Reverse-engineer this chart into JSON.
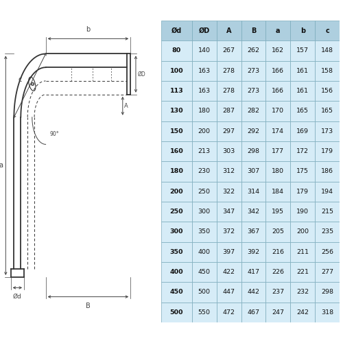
{
  "headers": [
    "Ød",
    "ØD",
    "A",
    "B",
    "a",
    "b",
    "c"
  ],
  "rows": [
    [
      "80",
      "140",
      "267",
      "262",
      "162",
      "157",
      "148"
    ],
    [
      "100",
      "163",
      "278",
      "273",
      "166",
      "161",
      "158"
    ],
    [
      "113",
      "163",
      "278",
      "273",
      "166",
      "161",
      "156"
    ],
    [
      "130",
      "180",
      "287",
      "282",
      "170",
      "165",
      "165"
    ],
    [
      "150",
      "200",
      "297",
      "292",
      "174",
      "169",
      "173"
    ],
    [
      "160",
      "213",
      "303",
      "298",
      "177",
      "172",
      "179"
    ],
    [
      "180",
      "230",
      "312",
      "307",
      "180",
      "175",
      "186"
    ],
    [
      "200",
      "250",
      "322",
      "314",
      "184",
      "179",
      "194"
    ],
    [
      "250",
      "300",
      "347",
      "342",
      "195",
      "190",
      "215"
    ],
    [
      "300",
      "350",
      "372",
      "367",
      "205",
      "200",
      "235"
    ],
    [
      "350",
      "400",
      "397",
      "392",
      "216",
      "211",
      "256"
    ],
    [
      "400",
      "450",
      "422",
      "417",
      "226",
      "221",
      "277"
    ],
    [
      "450",
      "500",
      "447",
      "442",
      "237",
      "232",
      "298"
    ],
    [
      "500",
      "550",
      "472",
      "467",
      "247",
      "242",
      "318"
    ]
  ],
  "header_bg": "#aecfdf",
  "row_bg": "#d6ecf7",
  "border_color": "#7aaabb",
  "bg_color": "#ffffff",
  "draw_color": "#333333",
  "dim_color": "#444444",
  "dash_color": "#555555"
}
